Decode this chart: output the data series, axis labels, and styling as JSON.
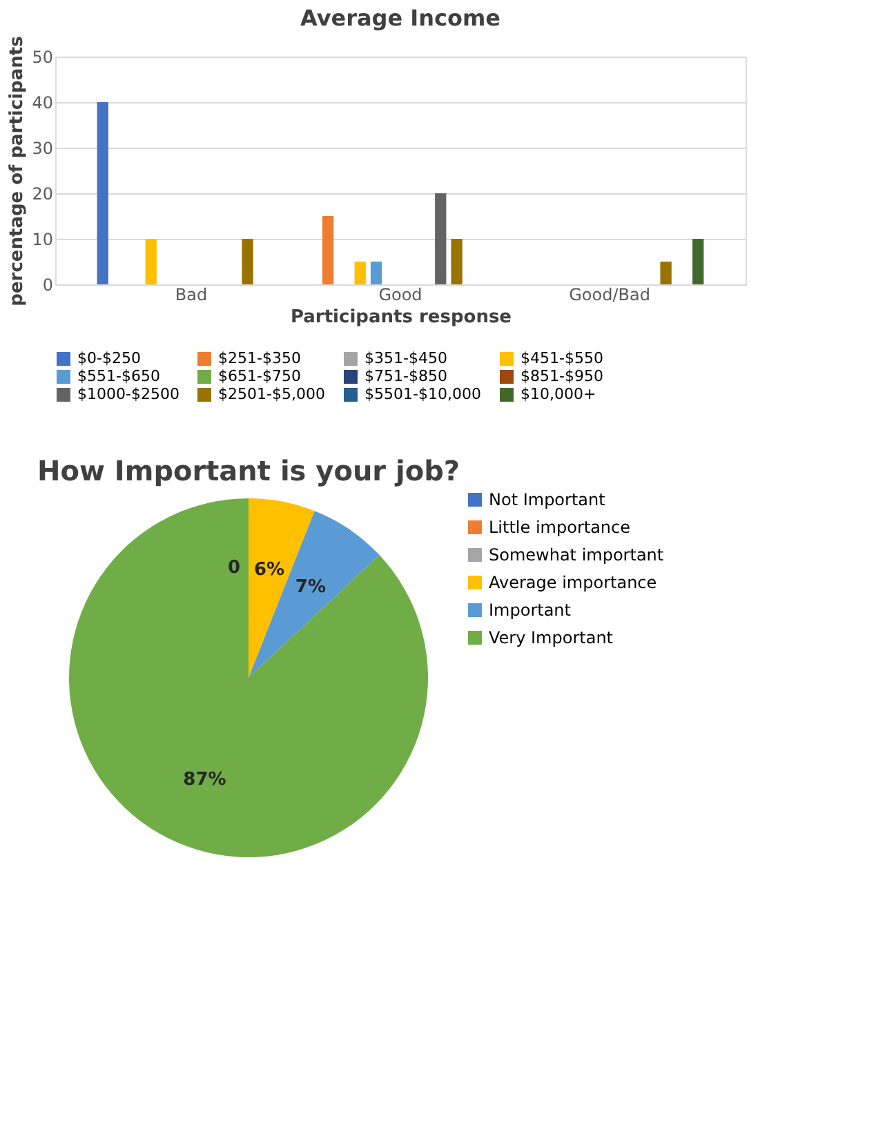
{
  "chart_data": [
    {
      "type": "bar",
      "title": "Average Income",
      "xlabel": "Participants response",
      "ylabel": "percentage of participants",
      "categories": [
        "Bad",
        "Good",
        "Good/Bad"
      ],
      "series": [
        {
          "name": "$0-$250",
          "color": "#4472c4",
          "values": [
            40,
            0,
            0
          ]
        },
        {
          "name": "$251-$350",
          "color": "#ed7d31",
          "values": [
            0,
            15,
            0
          ]
        },
        {
          "name": "$351-$450",
          "color": "#a5a5a5",
          "values": [
            0,
            0,
            0
          ]
        },
        {
          "name": "$451-$550",
          "color": "#ffc000",
          "values": [
            10,
            5,
            0
          ]
        },
        {
          "name": "$551-$650",
          "color": "#5b9bd5",
          "values": [
            0,
            5,
            0
          ]
        },
        {
          "name": "$651-$750",
          "color": "#70ad47",
          "values": [
            0,
            0,
            0
          ]
        },
        {
          "name": "$751-$850",
          "color": "#264478",
          "values": [
            0,
            0,
            0
          ]
        },
        {
          "name": "$851-$950",
          "color": "#9e480e",
          "values": [
            0,
            0,
            0
          ]
        },
        {
          "name": "$1000-$2500",
          "color": "#636363",
          "values": [
            0,
            20,
            0
          ]
        },
        {
          "name": "$2501-$5,000",
          "color": "#997300",
          "values": [
            10,
            10,
            5
          ]
        },
        {
          "name": "$5501-$10,000",
          "color": "#255e91",
          "values": [
            0,
            0,
            0
          ]
        },
        {
          "name": "$10,000+",
          "color": "#43682b",
          "values": [
            0,
            0,
            10
          ]
        }
      ],
      "ylim": [
        0,
        50
      ],
      "yticks": [
        0,
        10,
        20,
        30,
        40,
        50
      ],
      "grid": "y",
      "legend": "bottom"
    },
    {
      "type": "pie",
      "title": "How Important is your job?",
      "categories": [
        "Not Important",
        "Little importance",
        "Somewhat important",
        "Average importance",
        "Important",
        "Very Important"
      ],
      "values": [
        0,
        0,
        0,
        6,
        7,
        87
      ],
      "colors": [
        "#4472c4",
        "#ed7d31",
        "#a5a5a5",
        "#ffc000",
        "#5b9bd5",
        "#70ad47"
      ],
      "value_labels": [
        null,
        null,
        "0",
        "6%",
        "7%",
        "87%"
      ],
      "legend": "right"
    }
  ]
}
